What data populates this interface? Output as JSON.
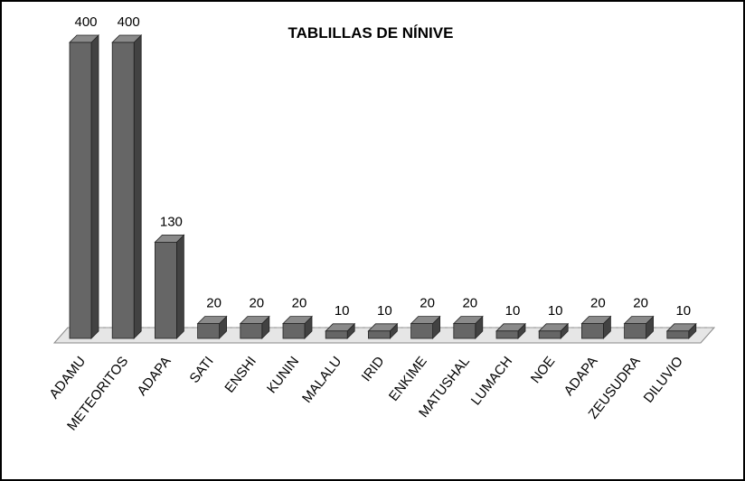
{
  "chart_data": {
    "type": "bar3d",
    "title": "TABLILLAS DE NÍNIVE",
    "categories": [
      "ADAMU",
      "METEORITOS",
      "ADAPA",
      "SATI",
      "ENSHI",
      "KUNIN",
      "MALALU",
      "IRID",
      "ENKIME",
      "MATUSHAL",
      "LUMACH",
      "NOE",
      "ADAPA",
      "ZEUSUDRA",
      "DILUVIO"
    ],
    "values": [
      400,
      400,
      130,
      20,
      20,
      20,
      10,
      10,
      20,
      20,
      10,
      10,
      20,
      20,
      10
    ],
    "color": "#666666"
  }
}
